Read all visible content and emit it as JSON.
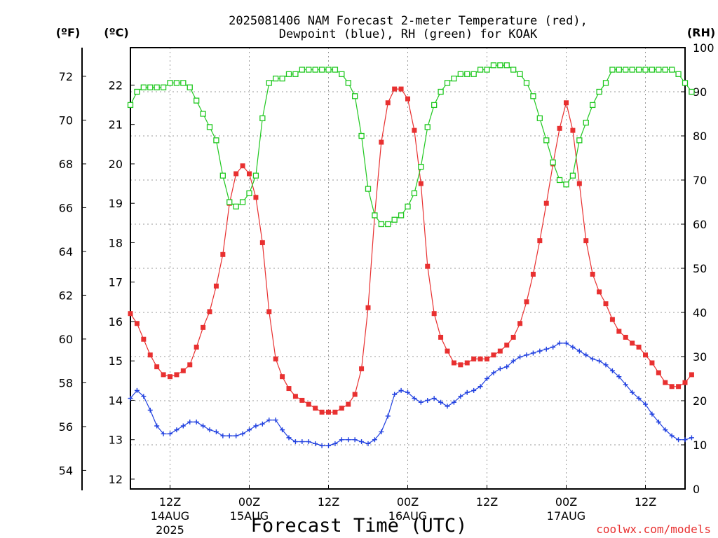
{
  "chart_data": {
    "type": "line",
    "title_line1": "2025081406 NAM Forecast 2-meter Temperature (red),",
    "title_line2": "Dewpoint (blue), RH (green) for KOAK",
    "xlabel": "Forecast Time (UTC)",
    "credit": "coolwx.com/models",
    "unit_f": "(ºF)",
    "unit_c": "(ºC)",
    "unit_rh": "(RH)",
    "x_range_hours": [
      0,
      84
    ],
    "celsius_range": [
      11.75,
      22.95
    ],
    "fahrenheit_ticks": [
      54,
      56,
      58,
      60,
      62,
      64,
      66,
      68,
      70,
      72
    ],
    "celsius_ticks": [
      12,
      13,
      14,
      15,
      16,
      17,
      18,
      19,
      20,
      21,
      22
    ],
    "rh_range": [
      0,
      100
    ],
    "rh_ticks": [
      0,
      10,
      20,
      30,
      40,
      50,
      60,
      70,
      80,
      90,
      100
    ],
    "x_ticks": [
      {
        "hour": 6,
        "line1": "12Z",
        "line2": "14AUG",
        "line3": "2025"
      },
      {
        "hour": 18,
        "line1": "00Z",
        "line2": "15AUG",
        "line3": ""
      },
      {
        "hour": 30,
        "line1": "12Z",
        "line2": "",
        "line3": ""
      },
      {
        "hour": 42,
        "line1": "00Z",
        "line2": "16AUG",
        "line3": ""
      },
      {
        "hour": 54,
        "line1": "12Z",
        "line2": "",
        "line3": ""
      },
      {
        "hour": 66,
        "line1": "00Z",
        "line2": "17AUG",
        "line3": ""
      },
      {
        "hour": 78,
        "line1": "12Z",
        "line2": "",
        "line3": ""
      }
    ],
    "grid": true,
    "colors": {
      "temperature": "#e83030",
      "dewpoint": "#2040e0",
      "rh": "#20c820"
    },
    "series": [
      {
        "key": "temperature",
        "unit": "C",
        "marker": "filled-square",
        "values": [
          16.2,
          15.95,
          15.55,
          15.15,
          14.85,
          14.65,
          14.6,
          14.65,
          14.75,
          14.9,
          15.35,
          15.85,
          16.25,
          16.9,
          17.7,
          19.0,
          19.75,
          19.95,
          19.75,
          19.15,
          18.0,
          16.25,
          15.05,
          14.6,
          14.3,
          14.1,
          14.0,
          13.9,
          13.8,
          13.7,
          13.7,
          13.7,
          13.8,
          13.9,
          14.15,
          14.8,
          16.35,
          18.7,
          20.55,
          21.55,
          21.9,
          21.9,
          21.65,
          20.85,
          19.5,
          17.4,
          16.2,
          15.6,
          15.25,
          14.95,
          14.9,
          14.95,
          15.05,
          15.05,
          15.05,
          15.15,
          15.25,
          15.4,
          15.6,
          15.95,
          16.5,
          17.2,
          18.05,
          19.0,
          20.0,
          20.9,
          21.55,
          20.85,
          19.5,
          18.05,
          17.2,
          16.75,
          16.45,
          16.05,
          15.75,
          15.6,
          15.45,
          15.35,
          15.15,
          14.95,
          14.7,
          14.45,
          14.35,
          14.35,
          14.45,
          14.65
        ]
      },
      {
        "key": "dewpoint",
        "unit": "C",
        "marker": "plus",
        "values": [
          14.05,
          14.25,
          14.1,
          13.75,
          13.35,
          13.15,
          13.15,
          13.25,
          13.35,
          13.45,
          13.45,
          13.35,
          13.25,
          13.2,
          13.1,
          13.1,
          13.1,
          13.15,
          13.25,
          13.35,
          13.4,
          13.5,
          13.5,
          13.25,
          13.05,
          12.95,
          12.95,
          12.95,
          12.9,
          12.85,
          12.85,
          12.9,
          13.0,
          13.0,
          13.0,
          12.95,
          12.9,
          13.0,
          13.2,
          13.6,
          14.15,
          14.25,
          14.2,
          14.05,
          13.95,
          14.0,
          14.05,
          13.95,
          13.85,
          13.95,
          14.1,
          14.2,
          14.25,
          14.35,
          14.55,
          14.7,
          14.8,
          14.85,
          15.0,
          15.1,
          15.15,
          15.2,
          15.25,
          15.3,
          15.35,
          15.45,
          15.45,
          15.35,
          15.25,
          15.15,
          15.05,
          15.0,
          14.9,
          14.75,
          14.6,
          14.4,
          14.2,
          14.05,
          13.9,
          13.65,
          13.45,
          13.25,
          13.1,
          13.0,
          13.0,
          13.05
        ]
      },
      {
        "key": "rh",
        "unit": "%",
        "marker": "open-square",
        "values": [
          87,
          90,
          91,
          91,
          91,
          91,
          92,
          92,
          92,
          91,
          88,
          85,
          82,
          79,
          71,
          65,
          64,
          65,
          67,
          71,
          84,
          92,
          93,
          93,
          94,
          94,
          95,
          95,
          95,
          95,
          95,
          95,
          94,
          92,
          89,
          80,
          68,
          62,
          60,
          60,
          61,
          62,
          64,
          67,
          73,
          82,
          87,
          90,
          92,
          93,
          94,
          94,
          94,
          95,
          95,
          96,
          96,
          96,
          95,
          94,
          92,
          89,
          84,
          79,
          74,
          70,
          69,
          71,
          79,
          83,
          87,
          90,
          92,
          95,
          95,
          95,
          95,
          95,
          95,
          95,
          95,
          95,
          95,
          94,
          92,
          90
        ]
      }
    ]
  }
}
